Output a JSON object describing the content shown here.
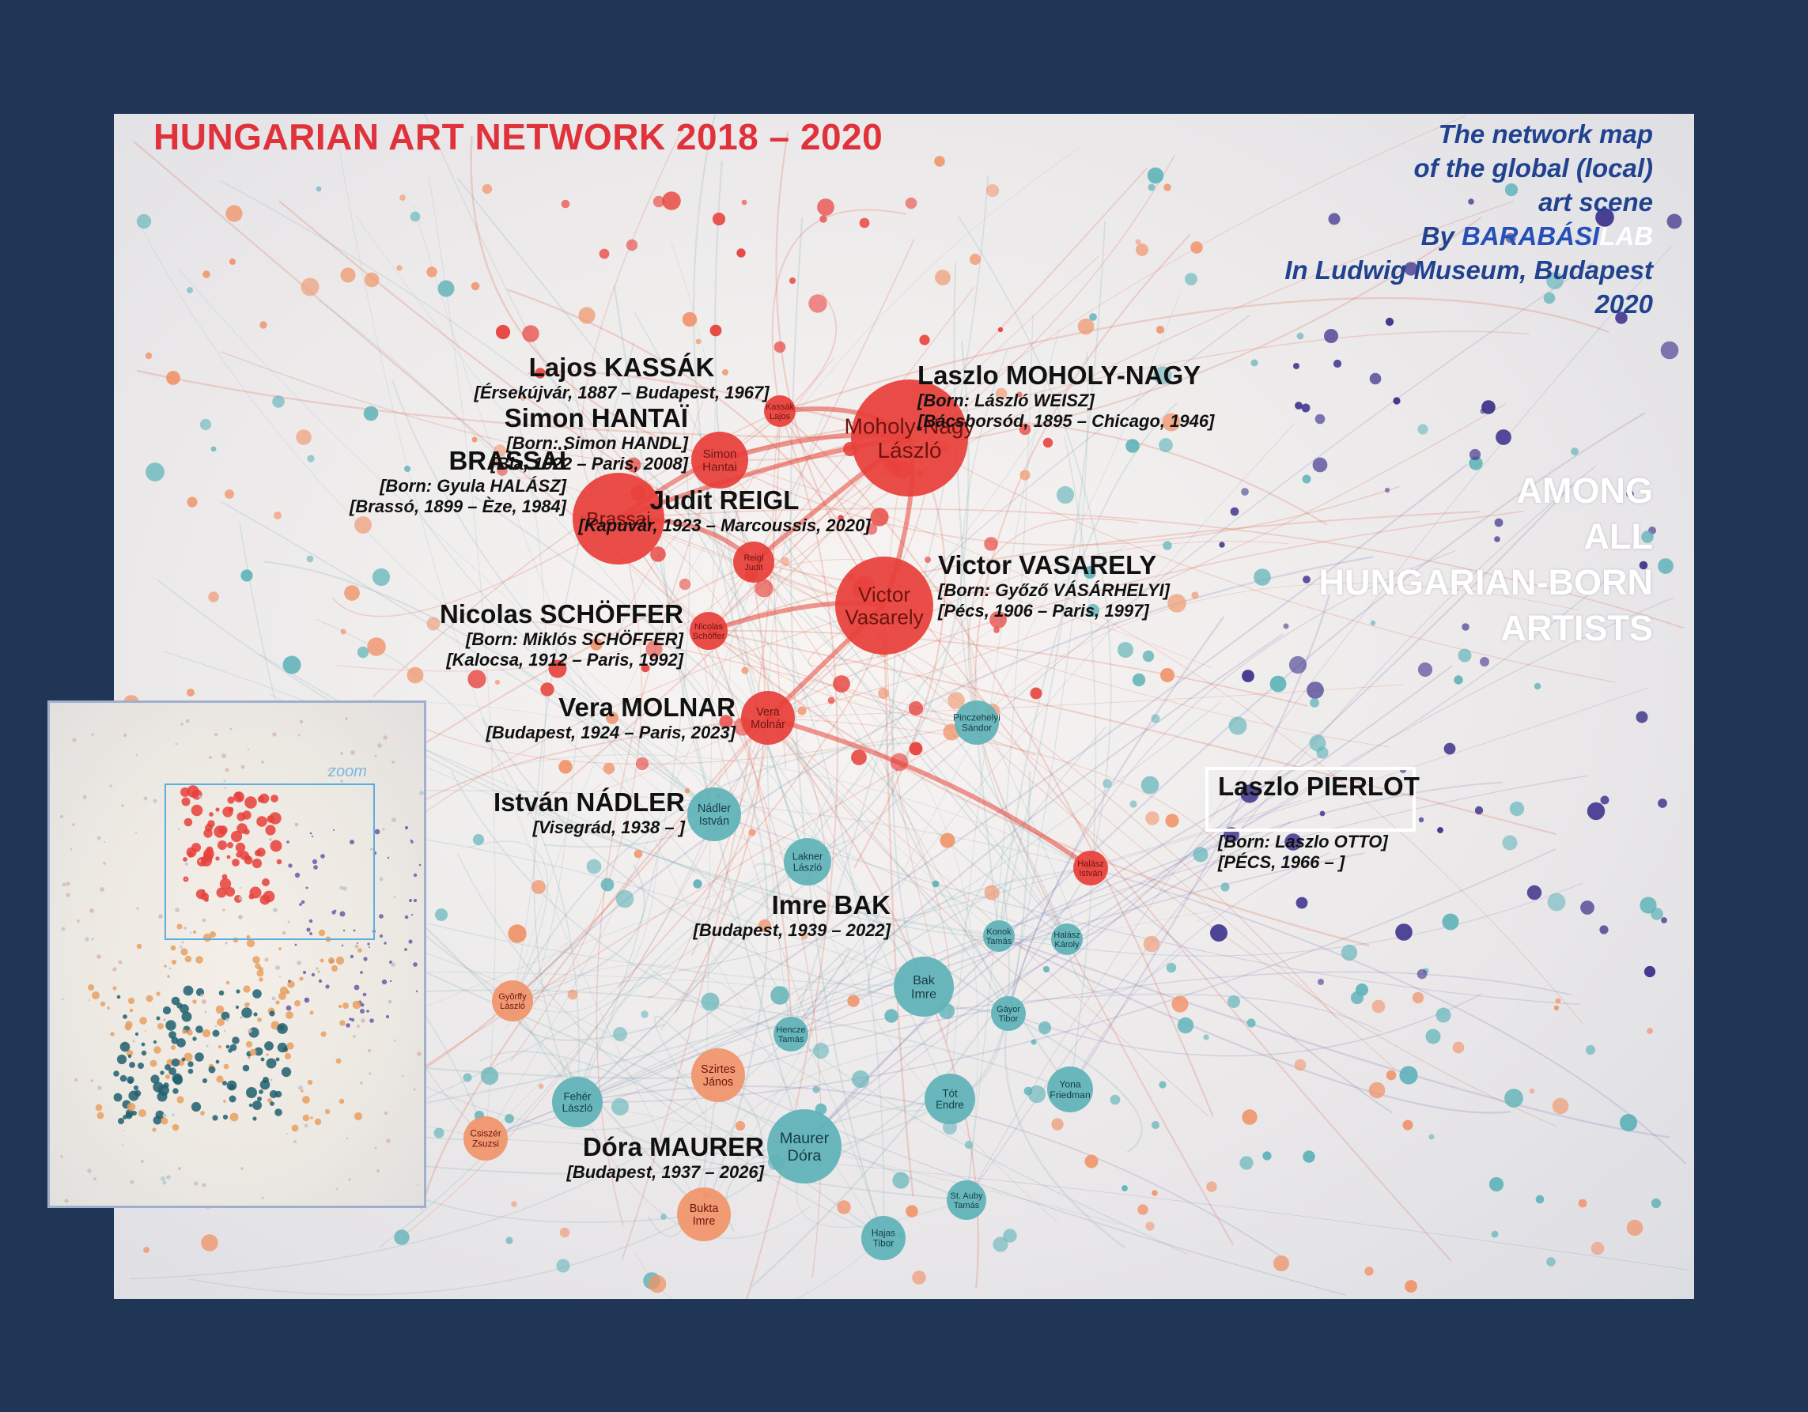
{
  "header": {
    "title": "HUNGARIAN ART NETWORK 2018 – 2020",
    "info_line1": "The network map",
    "info_line2": "of the global (local)",
    "info_line3": "art scene",
    "info_by": "By ",
    "info_barabasi": "BARABÁSI",
    "info_lab": "LAB",
    "info_line5": "In Ludwig Museum, Budapest",
    "info_line6": "2020"
  },
  "among": {
    "line1": "AMONG",
    "line2": "ALL",
    "line3": "HUNGARIAN-BORN",
    "line4": "ARTISTS"
  },
  "inset": {
    "zoom_label": "zoom"
  },
  "colors": {
    "background": "#1f3657",
    "title_red": "#e0323a",
    "info_blue": "#20428f",
    "node_red": "#e8403a",
    "node_salmon": "#f0946a",
    "node_teal": "#5fb3b8",
    "node_dark_teal": "#1f5f6e",
    "node_navy": "#3a2f8a",
    "node_purple": "#4a3a9a"
  },
  "callouts": [
    {
      "name": "Lajos KASSÁK",
      "lines": [
        "[Érsekújvár, 1887 – Budapest, 1967]"
      ]
    },
    {
      "name": "Laszlo MOHOLY-NAGY",
      "lines": [
        "[Born: László WEISZ]",
        "[Bácsborsód, 1895 – Chicago, 1946]"
      ]
    },
    {
      "name": "Simon HANTAÏ",
      "lines": [
        "[Born: Simon HANDL]",
        "[Bia, 1922 – Paris, 2008]"
      ]
    },
    {
      "name": "BRASSAÏ",
      "lines": [
        "[Born: Gyula HALÁSZ]",
        "[Brassó, 1899 – Èze, 1984]"
      ]
    },
    {
      "name": "Judit REIGL",
      "lines": [
        "[Kapuvár, 1923 – Marcoussis, 2020]"
      ]
    },
    {
      "name": "Victor VASARELY",
      "lines": [
        "[Born: Győző VÁSÁRHELYI]",
        "[Pécs, 1906 – Paris, 1997]"
      ]
    },
    {
      "name": "Nicolas SCHÖFFER",
      "lines": [
        "[Born: Miklós SCHÖFFER]",
        "[Kalocsa, 1912 – Paris, 1992]"
      ]
    },
    {
      "name": "Vera MOLNAR",
      "lines": [
        "[Budapest, 1924 – Paris, 2023]"
      ]
    },
    {
      "name": "István NÁDLER",
      "lines": [
        "[Visegrád, 1938 – ]"
      ]
    },
    {
      "name": "Laszlo PIERLOT",
      "lines": [
        "[Born: Laszlo OTTO]",
        "[PÉCS, 1966 – ]"
      ]
    },
    {
      "name": "Imre BAK",
      "lines": [
        "[Budapest, 1939 – 2022]"
      ]
    },
    {
      "name": "Dóra MAURER",
      "lines": [
        "[Budapest, 1937 – 2026]"
      ]
    }
  ],
  "nodes": [
    {
      "label": "Moholy-Nagy László",
      "color": "red"
    },
    {
      "label": "Victor Vasarely",
      "color": "red"
    },
    {
      "label": "Brassai",
      "color": "red"
    },
    {
      "label": "Simon Hantai",
      "color": "red"
    },
    {
      "label": "Reigl Judit",
      "color": "red"
    },
    {
      "label": "Vera Molnár",
      "color": "red"
    },
    {
      "label": "Nicolas Schöffer",
      "color": "red"
    },
    {
      "label": "Kassák Lajos",
      "color": "red"
    },
    {
      "label": "Nádler István",
      "color": "teal"
    },
    {
      "label": "Lakner László",
      "color": "teal"
    },
    {
      "label": "Bak Imre",
      "color": "teal"
    },
    {
      "label": "Maurer Dóra",
      "color": "teal"
    },
    {
      "label": "Fehér László",
      "color": "teal"
    },
    {
      "label": "Tót Endre",
      "color": "teal"
    },
    {
      "label": "Pinczehelyi Sándor",
      "color": "teal"
    },
    {
      "label": "Yona Friedman",
      "color": "teal"
    },
    {
      "label": "Szirtes János",
      "color": "salmon"
    },
    {
      "label": "Bukta Imre",
      "color": "salmon"
    },
    {
      "label": "Csiszér Zsuzsi",
      "color": "salmon"
    },
    {
      "label": "Hajas Tibor",
      "color": "teal"
    },
    {
      "label": "Halász István",
      "color": "red"
    },
    {
      "label": "Gáyor Tibor",
      "color": "teal"
    },
    {
      "label": "Konok Tamás",
      "color": "teal"
    },
    {
      "label": "Halász Károly",
      "color": "teal"
    },
    {
      "label": "Hencze Tamás",
      "color": "teal"
    },
    {
      "label": "St. Auby Tamás",
      "color": "teal"
    },
    {
      "label": "Gyõrffy László",
      "color": "salmon"
    }
  ]
}
